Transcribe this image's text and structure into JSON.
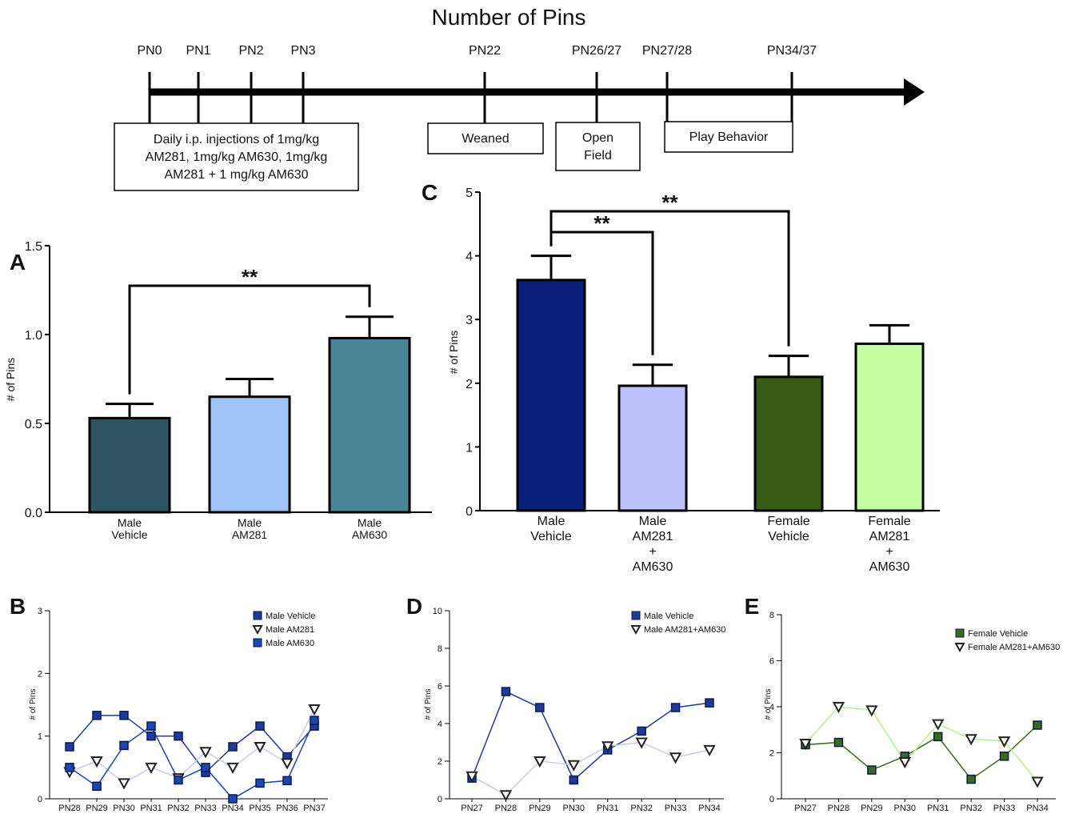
{
  "title": "Number of Pins",
  "timeline": {
    "points": [
      "PN0",
      "PN1",
      "PN2",
      "PN3",
      "PN22",
      "PN26/27",
      "PN27/28",
      "PN34/37"
    ],
    "boxes": [
      {
        "lines": [
          "Daily i.p. injections of 1mg/kg",
          "AM281, 1mg/kg AM630, 1mg/kg",
          "AM281 + 1 mg/kg AM630"
        ]
      },
      {
        "lines": [
          "Weaned"
        ]
      },
      {
        "lines": [
          "Open",
          "Field"
        ]
      },
      {
        "lines": [
          "Play Behavior"
        ]
      }
    ]
  },
  "chart_data": [
    {
      "type": "bar",
      "panel": "A",
      "ylabel": "# of Pins",
      "categories": [
        [
          "Male",
          "Vehicle"
        ],
        [
          "Male",
          "AM281"
        ],
        [
          "Male",
          "AM630"
        ]
      ],
      "values": [
        0.53,
        0.65,
        0.98
      ],
      "errors": [
        0.08,
        0.1,
        0.12
      ],
      "colors": [
        "#2e5463",
        "#a0c4f7",
        "#4a8596"
      ],
      "ylim": [
        0,
        1.5
      ],
      "yticks": [
        {
          "value": 0,
          "label": "0.0"
        },
        0.5,
        {
          "value": 1,
          "label": "1.0"
        },
        1.5
      ],
      "annotations": [
        {
          "text": "**",
          "from": 0,
          "to": 2
        }
      ]
    },
    {
      "type": "line",
      "panel": "B",
      "ylabel": "# of Pins",
      "categories": [
        "PN28",
        "PN29",
        "PN30",
        "PN31",
        "PN32",
        "PN33",
        "PN34",
        "PN35",
        "PN36",
        "PN37"
      ],
      "ylim": [
        0,
        3
      ],
      "yticks": [
        0,
        1,
        2,
        3
      ],
      "legend": "upper right",
      "series": [
        {
          "name": "Male Vehicle",
          "color": "#1f3a9a",
          "marker": "s",
          "values": [
            0.83,
            1.33,
            1.33,
            1.0,
            1.0,
            0.42,
            0.83,
            1.16,
            0.67,
            1.16
          ]
        },
        {
          "name": "Male AM281",
          "color": "#c5cbee",
          "marker": "v",
          "values": [
            0.43,
            0.6,
            0.25,
            0.5,
            0.33,
            0.75,
            0.5,
            0.83,
            0.57,
            1.43
          ]
        },
        {
          "name": "Male AM630",
          "color": "#1a47b0",
          "marker": "s",
          "values": [
            0.5,
            0.2,
            0.85,
            1.16,
            0.3,
            0.5,
            0.0,
            0.25,
            0.29,
            1.25
          ]
        }
      ]
    },
    {
      "type": "bar",
      "panel": "C",
      "ylabel": "# of Pins",
      "categories": [
        [
          "Male",
          "Vehicle"
        ],
        [
          "Male",
          "AM281",
          "+",
          "AM630"
        ],
        [
          "Female",
          "Vehicle"
        ],
        [
          "Female",
          "AM281",
          "+",
          "AM630"
        ]
      ],
      "values": [
        3.62,
        1.96,
        2.1,
        2.62
      ],
      "errors": [
        0.38,
        0.33,
        0.33,
        0.29
      ],
      "colors": [
        "#0a1f7a",
        "#bcc0fb",
        "#365b14",
        "#c3fd9f"
      ],
      "ylim": [
        0,
        5
      ],
      "yticks": [
        0,
        1,
        2,
        3,
        4,
        5
      ],
      "annotations": [
        {
          "text": "**",
          "from": 0,
          "to": 1
        },
        {
          "text": "**",
          "from": 0,
          "to": 2
        }
      ]
    },
    {
      "type": "line",
      "panel": "D",
      "ylabel": "# of Pins",
      "categories": [
        "PN27",
        "PN28",
        "PN29",
        "PN30",
        "PN31",
        "PN32",
        "PN33",
        "PN34"
      ],
      "ylim": [
        0,
        10
      ],
      "yticks": [
        0,
        2,
        4,
        6,
        8,
        10
      ],
      "legend": "upper right",
      "series": [
        {
          "name": "Male Vehicle",
          "color": "#1f3a9a",
          "marker": "s",
          "values": [
            1.1,
            5.7,
            4.85,
            1.0,
            2.6,
            3.6,
            4.85,
            5.1
          ]
        },
        {
          "name": "Male AM281+AM630",
          "color": "#c5cbee",
          "marker": "v",
          "values": [
            1.2,
            0.2,
            2.0,
            1.8,
            2.8,
            3.0,
            2.2,
            2.6
          ]
        }
      ]
    },
    {
      "type": "line",
      "panel": "E",
      "ylabel": "# of Pins",
      "categories": [
        "PN27",
        "PN28",
        "PN29",
        "PN30",
        "PN31",
        "PN32",
        "PN33",
        "PN34"
      ],
      "ylim": [
        0,
        8
      ],
      "yticks": [
        0,
        2,
        4,
        6,
        8
      ],
      "legend": "upper right",
      "series": [
        {
          "name": "Female Vehicle",
          "color": "#3a6b1a",
          "marker": "s",
          "values": [
            2.35,
            2.45,
            1.25,
            1.85,
            2.7,
            0.85,
            1.85,
            3.2
          ]
        },
        {
          "name": "Female AM281+AM630",
          "color": "#b5f08f",
          "marker": "v",
          "values": [
            2.4,
            4.0,
            3.85,
            1.6,
            3.25,
            2.6,
            2.5,
            0.75
          ]
        }
      ]
    }
  ]
}
